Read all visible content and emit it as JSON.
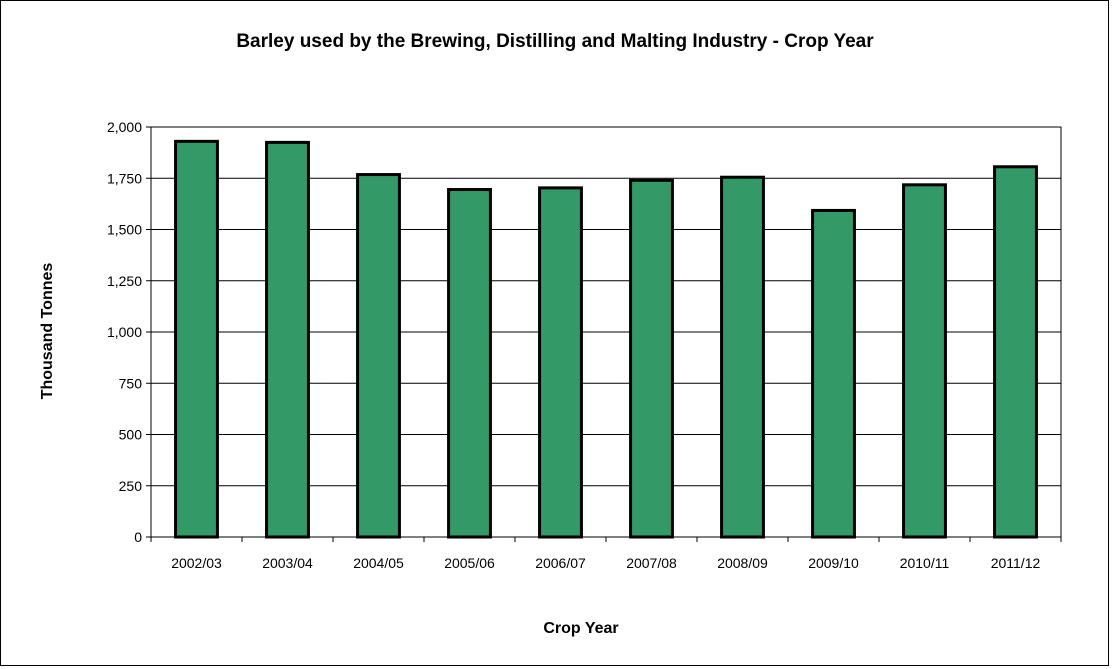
{
  "chart_data": {
    "type": "bar",
    "title": "Barley used by the Brewing, Distilling and Malting Industry - Crop Year",
    "xlabel": "Crop Year",
    "ylabel": "Thousand Tonnes",
    "categories": [
      "2002/03",
      "2003/04",
      "2004/05",
      "2005/06",
      "2006/07",
      "2007/08",
      "2008/09",
      "2009/10",
      "2010/11",
      "2011/12"
    ],
    "values": [
      1930,
      1925,
      1768,
      1695,
      1703,
      1740,
      1755,
      1593,
      1718,
      1806
    ],
    "ylim": [
      0,
      2000
    ],
    "yticks": [
      0,
      250,
      500,
      750,
      1000,
      1250,
      1500,
      1750,
      2000
    ],
    "ytick_labels": [
      "0",
      "250",
      "500",
      "750",
      "1,000",
      "1,250",
      "1,500",
      "1,750",
      "2,000"
    ],
    "grid": true,
    "legend": "none",
    "colors": {
      "bar": "#339966",
      "bar_edge": "#000000",
      "grid": "#000000"
    }
  }
}
